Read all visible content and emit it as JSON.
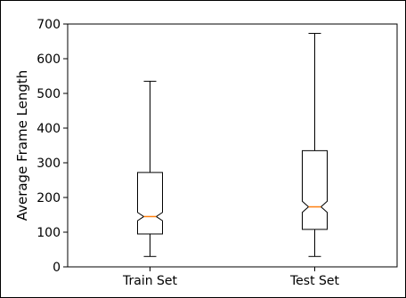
{
  "chart_data": {
    "type": "box",
    "title": "",
    "xlabel": "",
    "ylabel": "Average Frame Length",
    "ylim": [
      0,
      700
    ],
    "yticks": [
      0,
      100,
      200,
      300,
      400,
      500,
      600,
      700
    ],
    "categories": [
      "Train Set",
      "Test Set"
    ],
    "notched": true,
    "boxes": [
      {
        "category": "Train Set",
        "whisker_low": 30,
        "q1": 95,
        "median": 145,
        "q3": 272,
        "whisker_high": 535,
        "notch_low": 133,
        "notch_high": 157
      },
      {
        "category": "Test Set",
        "whisker_low": 30,
        "q1": 108,
        "median": 173,
        "q3": 335,
        "whisker_high": 673,
        "notch_low": 157,
        "notch_high": 189
      }
    ],
    "colors": {
      "box": "#000000",
      "median": "#ff7f0e"
    },
    "grid": false,
    "legend": "none"
  }
}
